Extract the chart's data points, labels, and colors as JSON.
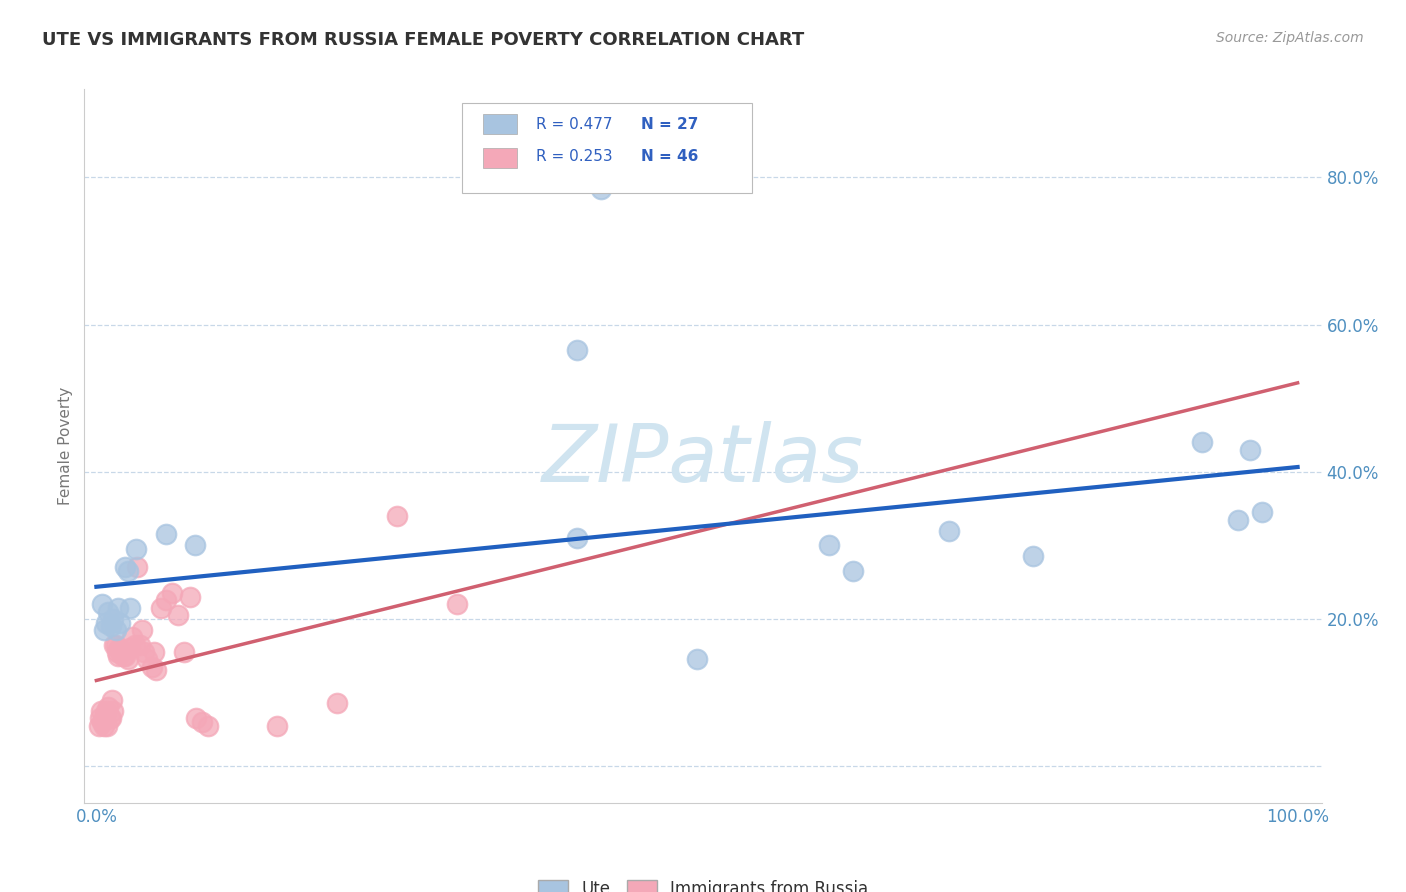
{
  "title": "UTE VS IMMIGRANTS FROM RUSSIA FEMALE POVERTY CORRELATION CHART",
  "source_text": "Source: ZipAtlas.com",
  "ylabel": "Female Poverty",
  "legend_labels": [
    "Ute",
    "Immigrants from Russia"
  ],
  "ute_R": "0.477",
  "ute_N": "27",
  "russia_R": "0.253",
  "russia_N": "46",
  "ute_color": "#a8c4e0",
  "ute_edge_color": "#a8c4e0",
  "russia_color": "#f4a8b8",
  "russia_edge_color": "#f4a8b8",
  "ute_line_color": "#2060c0",
  "russia_line_color": "#d06070",
  "watermark_color": "#d0e4f0",
  "xlim": [
    -0.01,
    1.02
  ],
  "ylim": [
    -0.05,
    0.92
  ],
  "ytick_vals": [
    0.0,
    0.2,
    0.4,
    0.6,
    0.8
  ],
  "ytick_labels": [
    "",
    "20.0%",
    "40.0%",
    "60.0%",
    "80.0%"
  ],
  "xtick_vals": [
    0.0,
    1.0
  ],
  "xtick_labels": [
    "0.0%",
    "100.0%"
  ],
  "grid_color": "#c8d8e8",
  "background_color": "#ffffff",
  "tick_label_color": "#5090c0",
  "title_color": "#333333",
  "source_color": "#999999",
  "ylabel_color": "#777777",
  "legend_text_color": "#333333",
  "stat_color": "#3060c0",
  "ute_points": [
    [
      0.005,
      0.22
    ],
    [
      0.006,
      0.185
    ],
    [
      0.008,
      0.195
    ],
    [
      0.01,
      0.21
    ],
    [
      0.012,
      0.19
    ],
    [
      0.014,
      0.2
    ],
    [
      0.016,
      0.185
    ],
    [
      0.018,
      0.215
    ],
    [
      0.02,
      0.195
    ],
    [
      0.024,
      0.27
    ],
    [
      0.026,
      0.265
    ],
    [
      0.028,
      0.215
    ],
    [
      0.033,
      0.295
    ],
    [
      0.058,
      0.315
    ],
    [
      0.082,
      0.3
    ],
    [
      0.4,
      0.31
    ],
    [
      0.4,
      0.565
    ],
    [
      0.42,
      0.785
    ],
    [
      0.5,
      0.145
    ],
    [
      0.61,
      0.3
    ],
    [
      0.63,
      0.265
    ],
    [
      0.71,
      0.32
    ],
    [
      0.78,
      0.285
    ],
    [
      0.92,
      0.44
    ],
    [
      0.95,
      0.335
    ],
    [
      0.96,
      0.43
    ],
    [
      0.97,
      0.345
    ]
  ],
  "russia_points": [
    [
      0.002,
      0.055
    ],
    [
      0.003,
      0.065
    ],
    [
      0.004,
      0.075
    ],
    [
      0.005,
      0.06
    ],
    [
      0.006,
      0.055
    ],
    [
      0.007,
      0.07
    ],
    [
      0.008,
      0.075
    ],
    [
      0.009,
      0.055
    ],
    [
      0.01,
      0.08
    ],
    [
      0.011,
      0.065
    ],
    [
      0.012,
      0.065
    ],
    [
      0.013,
      0.09
    ],
    [
      0.014,
      0.075
    ],
    [
      0.015,
      0.165
    ],
    [
      0.016,
      0.165
    ],
    [
      0.017,
      0.155
    ],
    [
      0.018,
      0.15
    ],
    [
      0.019,
      0.16
    ],
    [
      0.02,
      0.155
    ],
    [
      0.022,
      0.15
    ],
    [
      0.024,
      0.15
    ],
    [
      0.026,
      0.145
    ],
    [
      0.028,
      0.16
    ],
    [
      0.03,
      0.175
    ],
    [
      0.032,
      0.165
    ],
    [
      0.034,
      0.27
    ],
    [
      0.036,
      0.165
    ],
    [
      0.038,
      0.185
    ],
    [
      0.04,
      0.155
    ],
    [
      0.042,
      0.145
    ],
    [
      0.046,
      0.135
    ],
    [
      0.048,
      0.155
    ],
    [
      0.05,
      0.13
    ],
    [
      0.054,
      0.215
    ],
    [
      0.058,
      0.225
    ],
    [
      0.063,
      0.235
    ],
    [
      0.068,
      0.205
    ],
    [
      0.073,
      0.155
    ],
    [
      0.078,
      0.23
    ],
    [
      0.083,
      0.065
    ],
    [
      0.088,
      0.06
    ],
    [
      0.093,
      0.055
    ],
    [
      0.15,
      0.055
    ],
    [
      0.2,
      0.085
    ],
    [
      0.25,
      0.34
    ],
    [
      0.3,
      0.22
    ]
  ]
}
